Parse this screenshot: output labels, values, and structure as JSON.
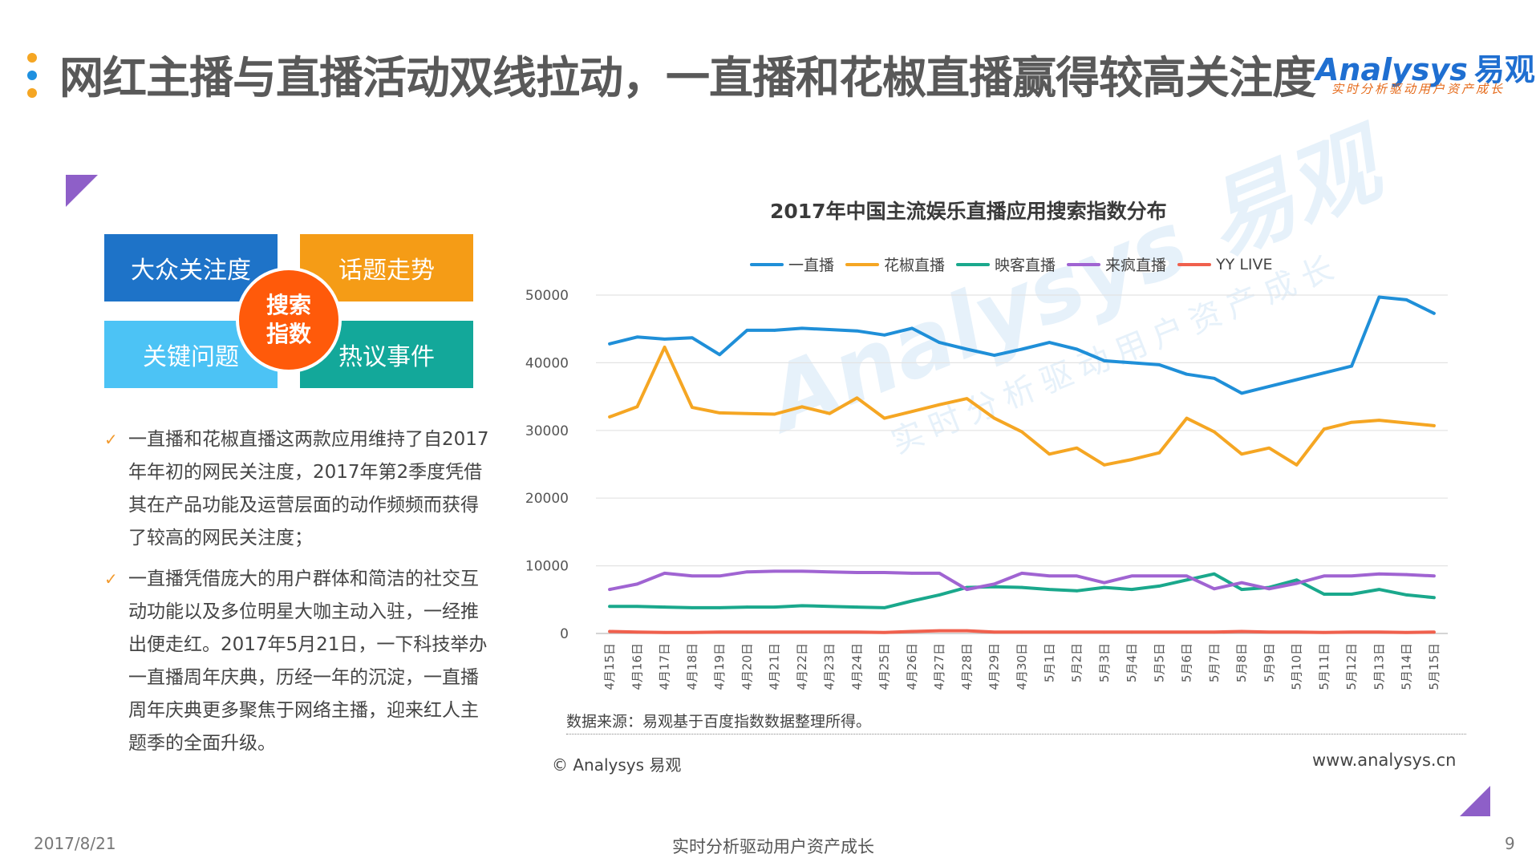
{
  "header": {
    "title": "网红主播与直播活动双线拉动，一直播和花椒直播赢得较高关注度",
    "logo_text": "Analysys",
    "logo_cn": "易观",
    "logo_slogan": "实时分析驱动用户资产成长"
  },
  "colors": {
    "accent_purple": "#8e5fc8",
    "dot_orange": "#f5a623",
    "dot_blue": "#1e90e0"
  },
  "quad": {
    "top_left": "大众关注度",
    "top_right": "话题走势",
    "bottom_left": "关键问题",
    "bottom_right": "热议事件",
    "center_line1": "搜索",
    "center_line2": "指数"
  },
  "bullets": [
    "一直播和花椒直播这两款应用维持了自2017年年初的网民关注度，2017年第2季度凭借其在产品功能及运营层面的动作频频而获得了较高的网民关注度；",
    "一直播凭借庞大的用户群体和简洁的社交互动功能以及多位明星大咖主动入驻，一经推出便走红。2017年5月21日，一下科技举办一直播周年庆典，历经一年的沉淀，一直播周年庆典更多聚焦于网络主播，迎来红人主题季的全面升级。"
  ],
  "chart_data": {
    "type": "line",
    "title": "2017年中国主流娱乐直播应用搜索指数分布",
    "ylim": [
      0,
      50000
    ],
    "yticks": [
      "50000",
      "40000",
      "30000",
      "20000",
      "10000",
      "0"
    ],
    "grid": true,
    "legend_position": "top",
    "categories": [
      "4月15日",
      "4月16日",
      "4月17日",
      "4月18日",
      "4月19日",
      "4月20日",
      "4月21日",
      "4月22日",
      "4月23日",
      "4月24日",
      "4月25日",
      "4月26日",
      "4月27日",
      "4月28日",
      "4月29日",
      "4月30日",
      "5月1日",
      "5月2日",
      "5月3日",
      "5月4日",
      "5月5日",
      "5月6日",
      "5月7日",
      "5月8日",
      "5月9日",
      "5月10日",
      "5月11日",
      "5月12日",
      "5月13日",
      "5月14日",
      "5月15日"
    ],
    "series": [
      {
        "name": "一直播",
        "color": "#1f8fd8",
        "values": [
          42800,
          43800,
          43500,
          43700,
          41200,
          44800,
          44800,
          45100,
          44900,
          44700,
          44100,
          45100,
          43000,
          42000,
          41100,
          42000,
          43000,
          42000,
          40300,
          40000,
          39700,
          38300,
          37700,
          35500,
          36500,
          37500,
          38500,
          39500,
          49700,
          49300,
          47300
        ]
      },
      {
        "name": "花椒直播",
        "color": "#f5a623",
        "values": [
          32000,
          33500,
          42300,
          33400,
          32600,
          32500,
          32400,
          33500,
          32500,
          34800,
          31800,
          32800,
          33800,
          34700,
          31800,
          29800,
          26500,
          27400,
          24900,
          25700,
          26700,
          31800,
          29800,
          26500,
          27400,
          24900,
          30200,
          31200,
          31500,
          31100,
          30700
        ]
      },
      {
        "name": "映客直播",
        "color": "#1aa88c",
        "values": [
          4000,
          4000,
          3900,
          3800,
          3800,
          3900,
          3900,
          4100,
          4000,
          3900,
          3800,
          4800,
          5700,
          6800,
          6900,
          6800,
          6500,
          6300,
          6800,
          6500,
          7000,
          7900,
          8800,
          6500,
          6800,
          7900,
          5800,
          5800,
          6500,
          5700,
          5300
        ]
      },
      {
        "name": "来疯直播",
        "color": "#a064d2",
        "values": [
          6500,
          7300,
          8900,
          8500,
          8500,
          9100,
          9200,
          9200,
          9100,
          9000,
          9000,
          8900,
          8900,
          6500,
          7300,
          8900,
          8500,
          8500,
          7500,
          8500,
          8500,
          8500,
          6600,
          7500,
          6600,
          7400,
          8500,
          8500,
          8800,
          8700,
          8500
        ]
      },
      {
        "name": "YY LIVE",
        "color": "#f0604d",
        "values": [
          300,
          200,
          150,
          150,
          200,
          200,
          200,
          200,
          200,
          200,
          150,
          300,
          400,
          400,
          200,
          200,
          200,
          200,
          200,
          200,
          200,
          200,
          200,
          300,
          200,
          200,
          150,
          200,
          200,
          150,
          200
        ]
      }
    ]
  },
  "source_note": "数据来源：易观基于百度指数数据整理所得。",
  "copyright": "© Analysys 易观",
  "website": "www.analysys.cn",
  "watermark": {
    "line1": "Analysys 易观",
    "line2": "实时分析驱动用户资产成长"
  },
  "footer": {
    "date": "2017/8/21",
    "slogan": "实时分析驱动用户资产成长",
    "page": "9"
  }
}
